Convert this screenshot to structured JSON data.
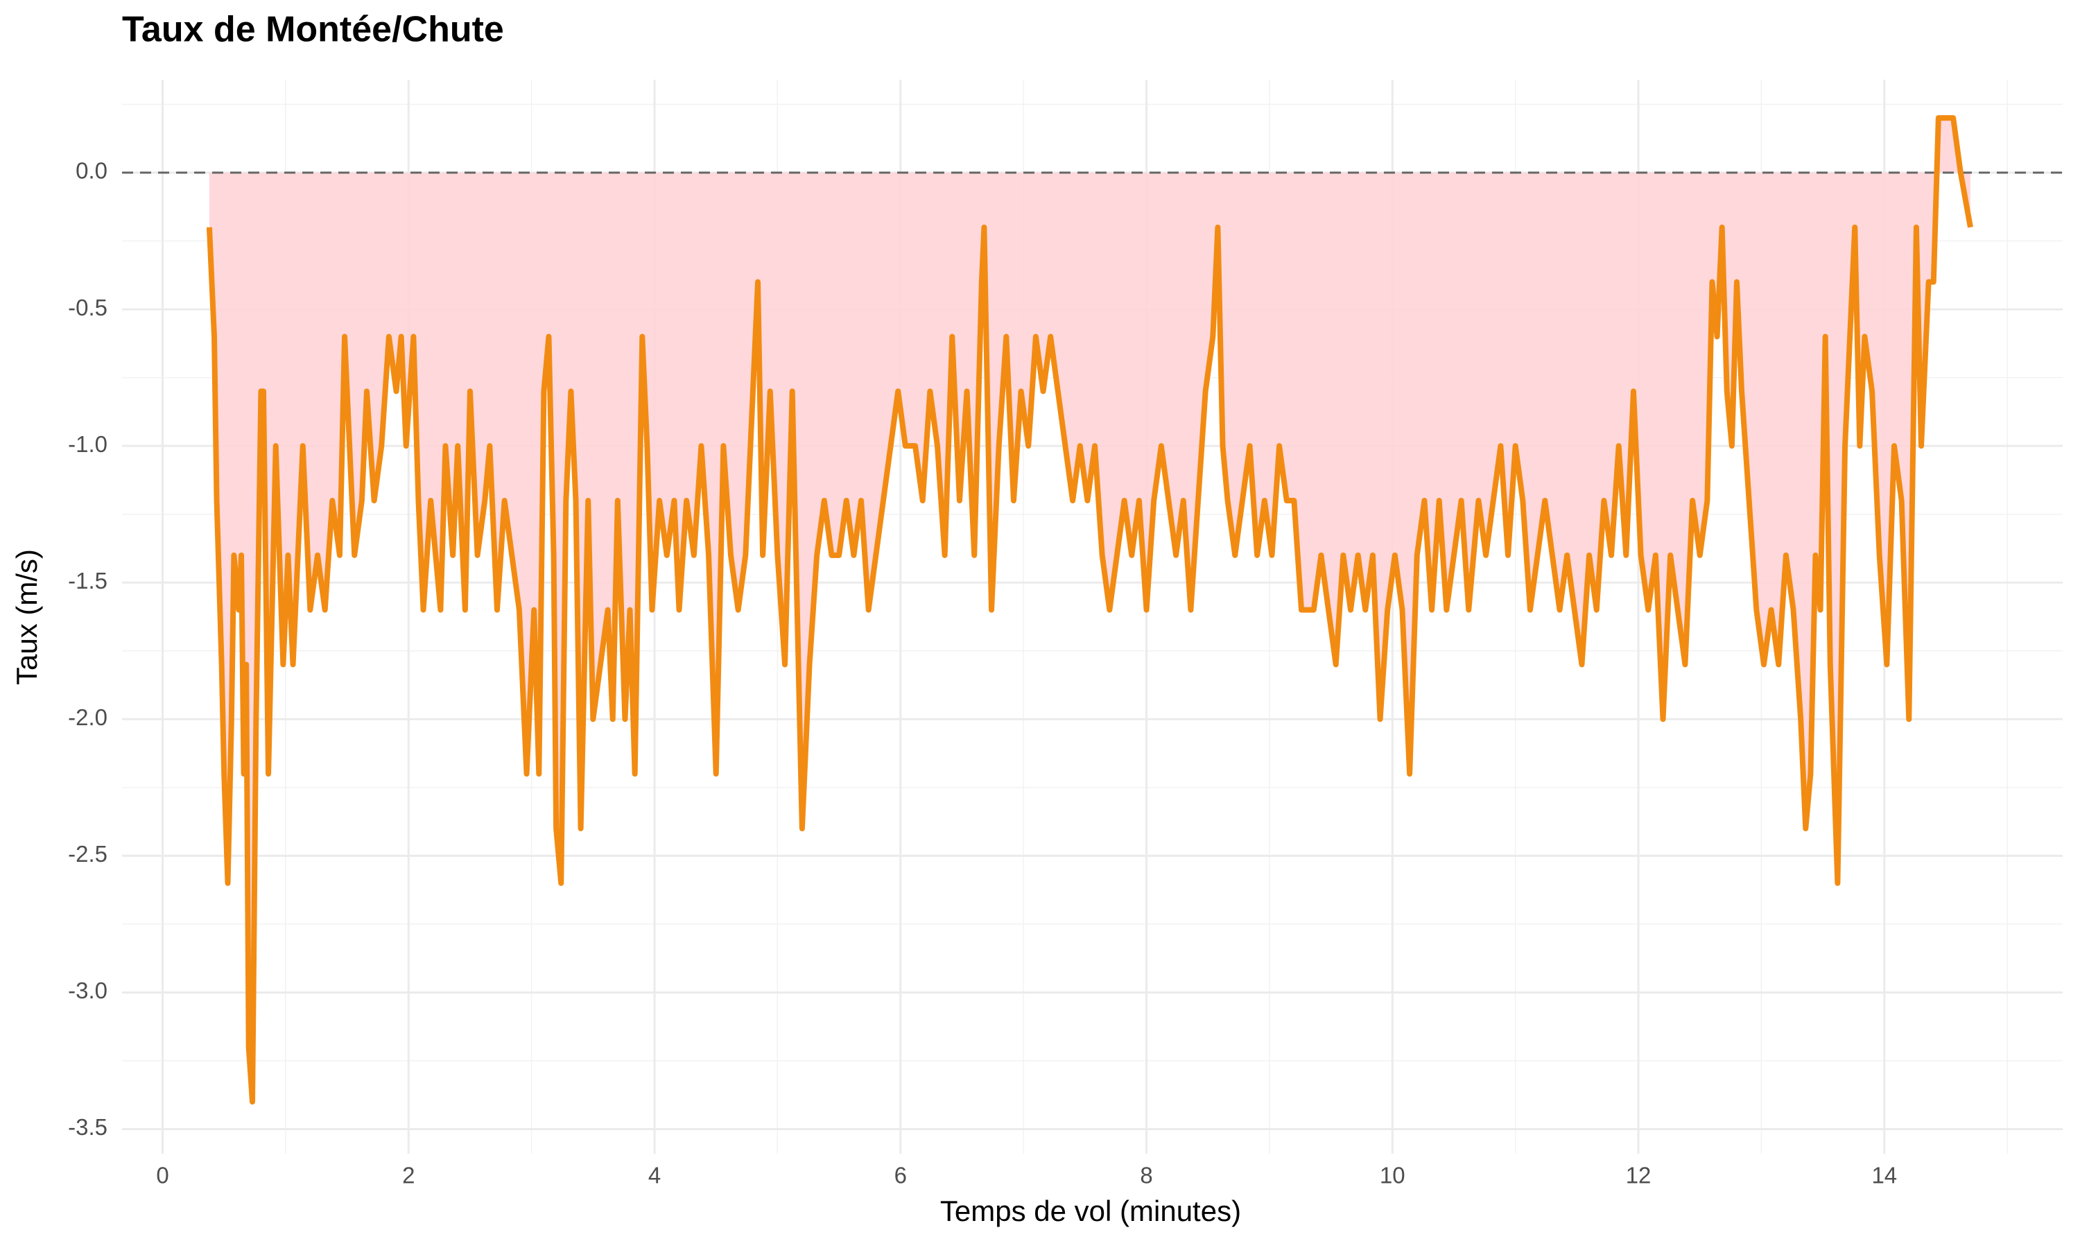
{
  "chart_data": {
    "type": "line",
    "title": "Taux de Montée/Chute",
    "x_label": "Temps de vol (minutes)",
    "y_label": "Taux (m/s)",
    "x": [
      0.38,
      0.42,
      0.44,
      0.48,
      0.5,
      0.53,
      0.56,
      0.58,
      0.62,
      0.64,
      0.66,
      0.68,
      0.7,
      0.73,
      0.76,
      0.8,
      0.82,
      0.86,
      0.9,
      0.92,
      0.95,
      0.98,
      1.02,
      1.06,
      1.1,
      1.14,
      1.2,
      1.26,
      1.32,
      1.38,
      1.44,
      1.48,
      1.52,
      1.56,
      1.62,
      1.66,
      1.72,
      1.78,
      1.84,
      1.9,
      1.94,
      1.98,
      2.04,
      2.08,
      2.12,
      2.18,
      2.22,
      2.26,
      2.3,
      2.36,
      2.4,
      2.46,
      2.5,
      2.56,
      2.62,
      2.66,
      2.72,
      2.78,
      2.84,
      2.9,
      2.96,
      3.02,
      3.06,
      3.1,
      3.14,
      3.18,
      3.2,
      3.24,
      3.28,
      3.32,
      3.36,
      3.4,
      3.46,
      3.5,
      3.56,
      3.62,
      3.66,
      3.7,
      3.76,
      3.8,
      3.84,
      3.9,
      3.94,
      3.98,
      4.04,
      4.1,
      4.16,
      4.2,
      4.26,
      4.32,
      4.38,
      4.44,
      4.5,
      4.56,
      4.62,
      4.68,
      4.74,
      4.8,
      4.84,
      4.88,
      4.94,
      5.0,
      5.06,
      5.12,
      5.2,
      5.26,
      5.32,
      5.38,
      5.44,
      5.5,
      5.56,
      5.62,
      5.68,
      5.74,
      5.8,
      5.86,
      5.92,
      5.98,
      6.04,
      6.12,
      6.18,
      6.24,
      6.3,
      6.36,
      6.42,
      6.48,
      6.54,
      6.6,
      6.66,
      6.68,
      6.74,
      6.8,
      6.86,
      6.92,
      6.98,
      7.04,
      7.1,
      7.16,
      7.22,
      7.28,
      7.34,
      7.4,
      7.46,
      7.52,
      7.58,
      7.64,
      7.7,
      7.76,
      7.82,
      7.88,
      7.94,
      8.0,
      8.06,
      8.12,
      8.18,
      8.24,
      8.3,
      8.36,
      8.42,
      8.48,
      8.54,
      8.58,
      8.62,
      8.66,
      8.72,
      8.78,
      8.84,
      8.9,
      8.96,
      9.02,
      9.08,
      9.14,
      9.2,
      9.26,
      9.36,
      9.42,
      9.48,
      9.54,
      9.6,
      9.66,
      9.72,
      9.78,
      9.84,
      9.9,
      9.96,
      10.02,
      10.08,
      10.14,
      10.2,
      10.26,
      10.32,
      10.38,
      10.44,
      10.5,
      10.56,
      10.62,
      10.7,
      10.76,
      10.82,
      10.88,
      10.94,
      11.0,
      11.06,
      11.12,
      11.18,
      11.24,
      11.3,
      11.36,
      11.42,
      11.48,
      11.54,
      11.6,
      11.66,
      11.72,
      11.78,
      11.84,
      11.9,
      11.96,
      12.02,
      12.08,
      12.14,
      12.2,
      12.26,
      12.32,
      12.38,
      12.44,
      12.5,
      12.56,
      12.6,
      12.64,
      12.68,
      12.72,
      12.76,
      12.8,
      12.84,
      12.9,
      12.96,
      13.02,
      13.08,
      13.14,
      13.2,
      13.26,
      13.32,
      13.36,
      13.4,
      13.44,
      13.48,
      13.52,
      13.56,
      13.62,
      13.68,
      13.72,
      13.76,
      13.8,
      13.84,
      13.9,
      13.96,
      14.02,
      14.08,
      14.14,
      14.2,
      14.26,
      14.3,
      14.36,
      14.4,
      14.44,
      14.5,
      14.56,
      14.62,
      14.7
    ],
    "values": [
      -0.2,
      -0.6,
      -1.2,
      -1.8,
      -2.2,
      -2.6,
      -2.0,
      -1.4,
      -1.6,
      -1.4,
      -2.2,
      -1.8,
      -3.2,
      -3.4,
      -2.0,
      -0.8,
      -0.8,
      -2.2,
      -1.4,
      -1.0,
      -1.4,
      -1.8,
      -1.4,
      -1.8,
      -1.4,
      -1.0,
      -1.6,
      -1.4,
      -1.6,
      -1.2,
      -1.4,
      -0.6,
      -1.0,
      -1.4,
      -1.2,
      -0.8,
      -1.2,
      -1.0,
      -0.6,
      -0.8,
      -0.6,
      -1.0,
      -0.6,
      -1.2,
      -1.6,
      -1.2,
      -1.4,
      -1.6,
      -1.0,
      -1.4,
      -1.0,
      -1.6,
      -0.8,
      -1.4,
      -1.2,
      -1.0,
      -1.6,
      -1.2,
      -1.4,
      -1.6,
      -2.2,
      -1.6,
      -2.2,
      -0.8,
      -0.6,
      -1.4,
      -2.4,
      -2.6,
      -1.2,
      -0.8,
      -1.2,
      -2.4,
      -1.2,
      -2.0,
      -1.8,
      -1.6,
      -2.0,
      -1.2,
      -2.0,
      -1.6,
      -2.2,
      -0.6,
      -1.0,
      -1.6,
      -1.2,
      -1.4,
      -1.2,
      -1.6,
      -1.2,
      -1.4,
      -1.0,
      -1.4,
      -2.2,
      -1.0,
      -1.4,
      -1.6,
      -1.4,
      -0.8,
      -0.4,
      -1.4,
      -0.8,
      -1.4,
      -1.8,
      -0.8,
      -2.4,
      -1.8,
      -1.4,
      -1.2,
      -1.4,
      -1.4,
      -1.2,
      -1.4,
      -1.2,
      -1.6,
      -1.4,
      -1.2,
      -1.0,
      -0.8,
      -1.0,
      -1.0,
      -1.2,
      -0.8,
      -1.0,
      -1.4,
      -0.6,
      -1.2,
      -0.8,
      -1.4,
      -0.4,
      -0.2,
      -1.6,
      -1.0,
      -0.6,
      -1.2,
      -0.8,
      -1.0,
      -0.6,
      -0.8,
      -0.6,
      -0.8,
      -1.0,
      -1.2,
      -1.0,
      -1.2,
      -1.0,
      -1.4,
      -1.6,
      -1.4,
      -1.2,
      -1.4,
      -1.2,
      -1.6,
      -1.2,
      -1.0,
      -1.2,
      -1.4,
      -1.2,
      -1.6,
      -1.2,
      -0.8,
      -0.6,
      -0.2,
      -1.0,
      -1.2,
      -1.4,
      -1.2,
      -1.0,
      -1.4,
      -1.2,
      -1.4,
      -1.0,
      -1.2,
      -1.2,
      -1.6,
      -1.6,
      -1.4,
      -1.6,
      -1.8,
      -1.4,
      -1.6,
      -1.4,
      -1.6,
      -1.4,
      -2.0,
      -1.6,
      -1.4,
      -1.6,
      -2.2,
      -1.4,
      -1.2,
      -1.6,
      -1.2,
      -1.6,
      -1.4,
      -1.2,
      -1.6,
      -1.2,
      -1.4,
      -1.2,
      -1.0,
      -1.4,
      -1.0,
      -1.2,
      -1.6,
      -1.4,
      -1.2,
      -1.4,
      -1.6,
      -1.4,
      -1.6,
      -1.8,
      -1.4,
      -1.6,
      -1.2,
      -1.4,
      -1.0,
      -1.4,
      -0.8,
      -1.4,
      -1.6,
      -1.4,
      -2.0,
      -1.4,
      -1.6,
      -1.8,
      -1.2,
      -1.4,
      -1.2,
      -0.4,
      -0.6,
      -0.2,
      -0.8,
      -1.0,
      -0.4,
      -0.8,
      -1.2,
      -1.6,
      -1.8,
      -1.6,
      -1.8,
      -1.4,
      -1.6,
      -2.0,
      -2.4,
      -2.2,
      -1.4,
      -1.6,
      -0.6,
      -1.8,
      -2.6,
      -1.0,
      -0.6,
      -0.2,
      -1.0,
      -0.6,
      -0.8,
      -1.4,
      -1.8,
      -1.0,
      -1.2,
      -2.0,
      -0.2,
      -1.0,
      -0.4,
      -0.4,
      0.2,
      0.2,
      0.2,
      0.0,
      -0.2
    ],
    "color": "#f28b12",
    "area_color": "#ffd4d8",
    "hline": 0,
    "xlim": [
      -0.33,
      15.45
    ],
    "xticks": [
      0,
      2,
      4,
      6,
      8,
      10,
      12,
      14
    ],
    "ylim": [
      -3.59,
      0.34
    ],
    "yticks": [
      {
        "value": 0,
        "label": "0.0"
      },
      -0.5,
      {
        "value": -1,
        "label": "-1.0"
      },
      -1.5,
      {
        "value": -2,
        "label": "-2.0"
      },
      -2.5,
      {
        "value": -3,
        "label": "-3.0"
      },
      -3.5
    ],
    "grid": true
  }
}
